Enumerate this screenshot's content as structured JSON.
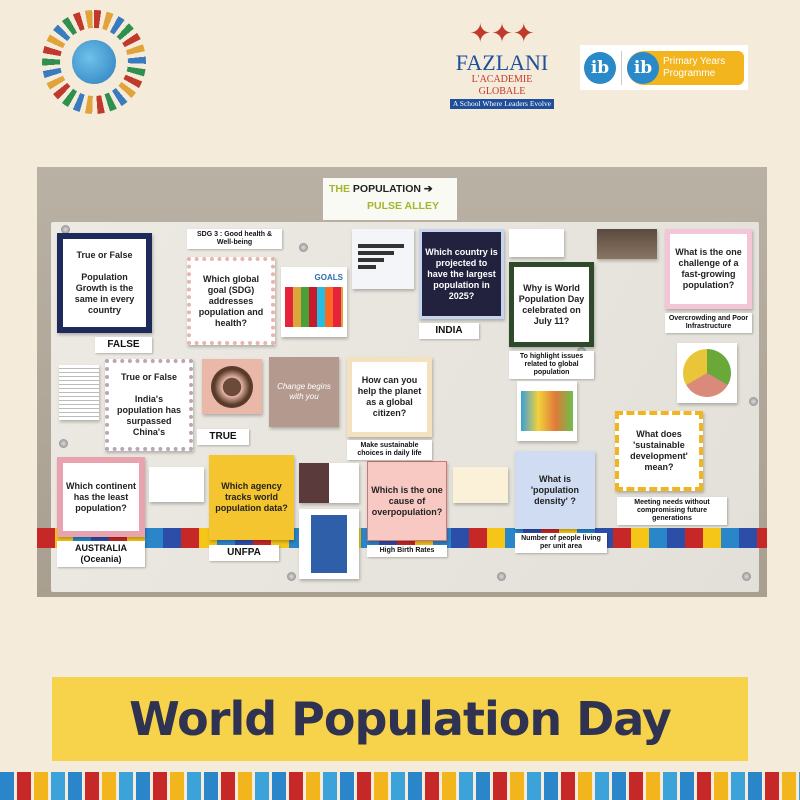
{
  "header": {
    "left_logo": "hands-globe-logo",
    "fazlani": {
      "figures": "✦✦✦",
      "name": "FAZLANI",
      "sub": "L'ACADEMIE GLOBALE",
      "tagline": "A School Where Leaders Evolve"
    },
    "ib": {
      "mark": "ib",
      "programme": "Primary Years Programme"
    }
  },
  "board": {
    "sign": {
      "line1_a": "THE ",
      "line1_b": "POPULATION ➔",
      "line2": "PULSE ALLEY"
    },
    "cards": [
      "True or False\n\nPopulation Growth is the same in every country",
      "Which global goal (SDG) addresses population and health?",
      "Which country is projected to have the largest population in 2025?",
      "Why is World Population Day celebrated on July 11?",
      "What is the one challenge of a fast-growing population?",
      "True or False\n\nIndia's population has surpassed China's",
      "How can you help the planet as a global citizen?",
      "Which continent has the least population?",
      "Which agency tracks world population data?",
      "Which is the one cause of overpopulation?",
      "What is 'population density' ?",
      "What does 'sustainable development' mean?"
    ],
    "labels": [
      "FALSE",
      "SDG 3 : Good health & Well-being",
      "INDIA",
      "To highlight issues related to global population",
      "Overcrowding and Poor Infrastructure",
      "TRUE",
      "Make sustainable choices in daily life",
      "AUSTRALIA (Oceania)",
      "UNFPA",
      "High Birth Rates",
      "Number of people living per unit area",
      "Meeting needs without compromising future generations"
    ],
    "sdg_goals": "GOALS",
    "change_photo": "Change begins with you"
  },
  "banner": {
    "title": "World Population Day"
  },
  "colors": {
    "background": "#f4ebdb",
    "banner": "#f6d34b",
    "banner_text": "#2f3250"
  }
}
